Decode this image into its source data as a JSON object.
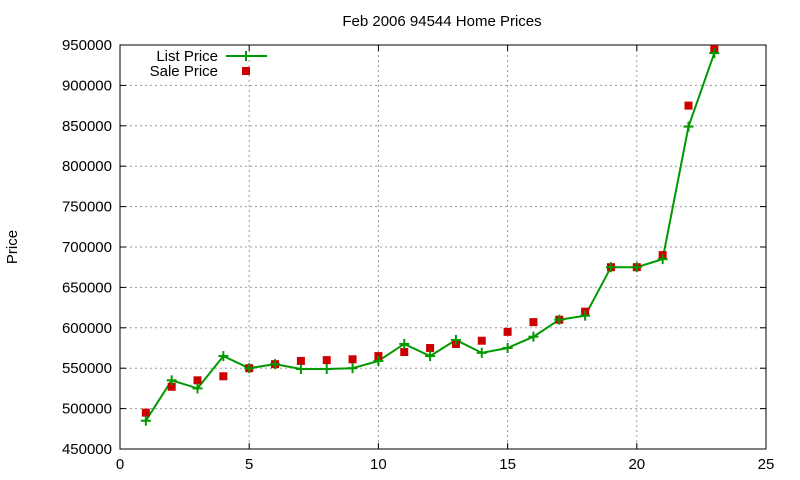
{
  "chart_data": {
    "type": "line",
    "title": "Feb 2006 94544 Home Prices",
    "xlabel": "",
    "ylabel": "Price",
    "xlim": [
      0,
      25
    ],
    "ylim": [
      450000,
      950000
    ],
    "xticks": [
      "0",
      "5",
      "10",
      "15",
      "20",
      "25"
    ],
    "yticks": [
      "450000",
      "500000",
      "550000",
      "600000",
      "650000",
      "700000",
      "750000",
      "800000",
      "850000",
      "900000",
      "950000"
    ],
    "grid": true,
    "legend_position": "top-left",
    "x": [
      1,
      2,
      3,
      4,
      5,
      6,
      7,
      8,
      9,
      10,
      11,
      12,
      13,
      14,
      15,
      16,
      17,
      18,
      19,
      20,
      21,
      22,
      23
    ],
    "series": [
      {
        "name": "List Price",
        "style": "line-with-plus-markers",
        "color": "#009900",
        "values": [
          485000,
          535000,
          525000,
          565000,
          550000,
          555000,
          549000,
          549000,
          550000,
          559000,
          580000,
          565000,
          585000,
          569000,
          575000,
          589000,
          610000,
          615000,
          675000,
          675000,
          685000,
          849000,
          940000
        ]
      },
      {
        "name": "Sale Price",
        "style": "square-markers",
        "color": "#cc0000",
        "values": [
          495000,
          527000,
          535000,
          540000,
          550000,
          555000,
          559000,
          560000,
          561000,
          565000,
          570000,
          575000,
          580000,
          584000,
          595000,
          607000,
          610000,
          620000,
          675000,
          675000,
          690000,
          875000,
          945000
        ]
      }
    ]
  }
}
